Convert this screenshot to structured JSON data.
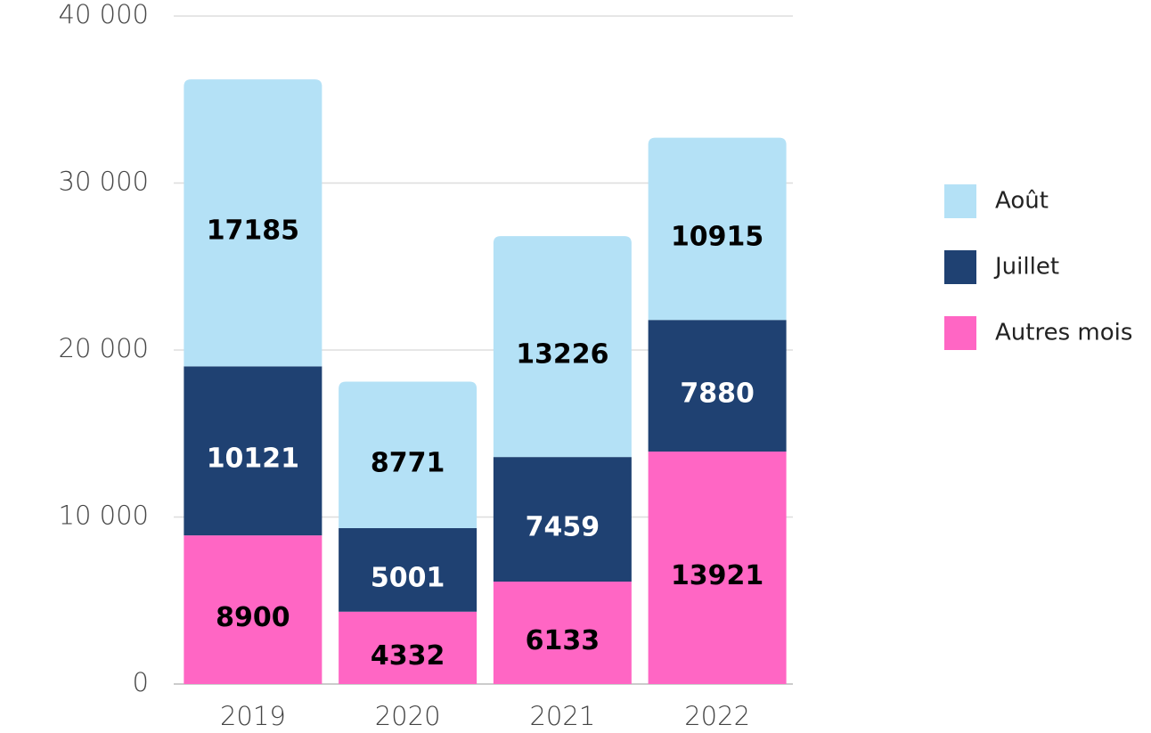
{
  "chart_data": {
    "type": "stacked-bar",
    "categories": [
      "2019",
      "2020",
      "2021",
      "2022"
    ],
    "series": [
      {
        "name": "Autres mois",
        "color": "#ff66c4",
        "values": [
          8900,
          4332,
          6133,
          13921
        ]
      },
      {
        "name": "Juillet",
        "color": "#1f4172",
        "values": [
          10121,
          5001,
          7459,
          7880
        ]
      },
      {
        "name": "Août",
        "color": "#b4e1f6",
        "values": [
          17185,
          8771,
          13226,
          10915
        ]
      }
    ],
    "ylim": [
      0,
      40000
    ],
    "yticks": [
      0,
      {
        "value": 10000,
        "label": "10 000"
      },
      {
        "value": 20000,
        "label": "20 000"
      },
      {
        "value": 30000,
        "label": "30 000"
      },
      {
        "value": 40000,
        "label": "40 000"
      }
    ],
    "grid": true,
    "legend": "right"
  }
}
